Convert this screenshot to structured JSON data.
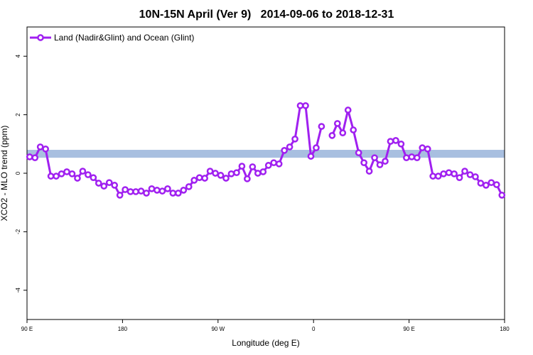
{
  "chart_data": {
    "type": "line",
    "title": "10N-15N April (Ver 9)   2014-09-06 to 2018-12-31",
    "x_label": "Longitude (deg E)",
    "y_label": "XCO2 - MLO trend (ppm)",
    "xlim": [
      90,
      540
    ],
    "xticks": [
      {
        "value": 90,
        "label": "90 E"
      },
      {
        "value": 180,
        "label": "180"
      },
      {
        "value": 270,
        "label": "90 W"
      },
      {
        "value": 360,
        "label": "0"
      },
      {
        "value": 450,
        "label": "90 E"
      },
      {
        "value": 540,
        "label": "180"
      }
    ],
    "ylim": [
      -5,
      5
    ],
    "yticks": [
      -4,
      -2,
      0,
      2,
      4
    ],
    "band": [
      0.53,
      0.8
    ],
    "band_color": "#a8bfe0",
    "legend": "top-left",
    "x": [
      92.5,
      97.5,
      102.5,
      107.5,
      112.5,
      117.5,
      122.5,
      127.5,
      132.5,
      137.5,
      142.5,
      147.5,
      152.5,
      157.5,
      162.5,
      167.5,
      172.5,
      177.5,
      182.5,
      187.5,
      192.5,
      197.5,
      202.5,
      207.5,
      212.5,
      217.5,
      222.5,
      227.5,
      232.5,
      237.5,
      242.5,
      247.5,
      252.5,
      257.5,
      262.5,
      267.5,
      272.5,
      277.5,
      282.5,
      287.5,
      292.5,
      297.5,
      302.5,
      307.5,
      312.5,
      317.5,
      322.5,
      327.5,
      332.5,
      337.5,
      342.5,
      347.5,
      352.5,
      357.5,
      362.5,
      367.5,
      372.5,
      377.5,
      382.5,
      387.5,
      392.5,
      397.5,
      402.5,
      407.5,
      412.5,
      417.5,
      422.5,
      427.5,
      432.5,
      437.5,
      442.5,
      447.5,
      452.5,
      457.5,
      462.5,
      467.5,
      472.5,
      477.5,
      482.5,
      487.5,
      492.5,
      497.5,
      502.5,
      507.5,
      512.5,
      517.5,
      522.5,
      527.5,
      532.5,
      537.5
    ],
    "series": [
      {
        "name": "Land (Nadir&Glint) and Ocean (Glint)",
        "color": "#a020f0",
        "values": [
          0.56,
          0.53,
          0.9,
          0.83,
          -0.1,
          -0.1,
          -0.02,
          0.05,
          -0.02,
          -0.17,
          0.07,
          -0.05,
          -0.15,
          -0.34,
          -0.44,
          -0.32,
          -0.41,
          -0.75,
          -0.56,
          -0.63,
          -0.63,
          -0.61,
          -0.68,
          -0.53,
          -0.58,
          -0.61,
          -0.53,
          -0.68,
          -0.68,
          -0.58,
          -0.46,
          -0.24,
          -0.15,
          -0.17,
          0.07,
          0.0,
          -0.07,
          -0.17,
          -0.02,
          0.02,
          0.24,
          -0.19,
          0.22,
          0.0,
          0.05,
          0.27,
          0.36,
          0.32,
          0.78,
          0.9,
          1.17,
          2.31,
          2.31,
          0.58,
          0.87,
          1.6,
          null,
          1.29,
          1.7,
          1.38,
          2.16,
          1.48,
          0.7,
          0.36,
          0.07,
          0.53,
          0.29,
          0.41,
          1.09,
          1.12,
          1.0,
          0.53,
          0.56,
          0.53,
          0.87,
          0.83,
          -0.1,
          -0.1,
          -0.02,
          0.02,
          -0.02,
          -0.15,
          0.07,
          -0.05,
          -0.12,
          -0.34,
          -0.41,
          -0.32,
          -0.39,
          -0.75
        ]
      }
    ]
  }
}
